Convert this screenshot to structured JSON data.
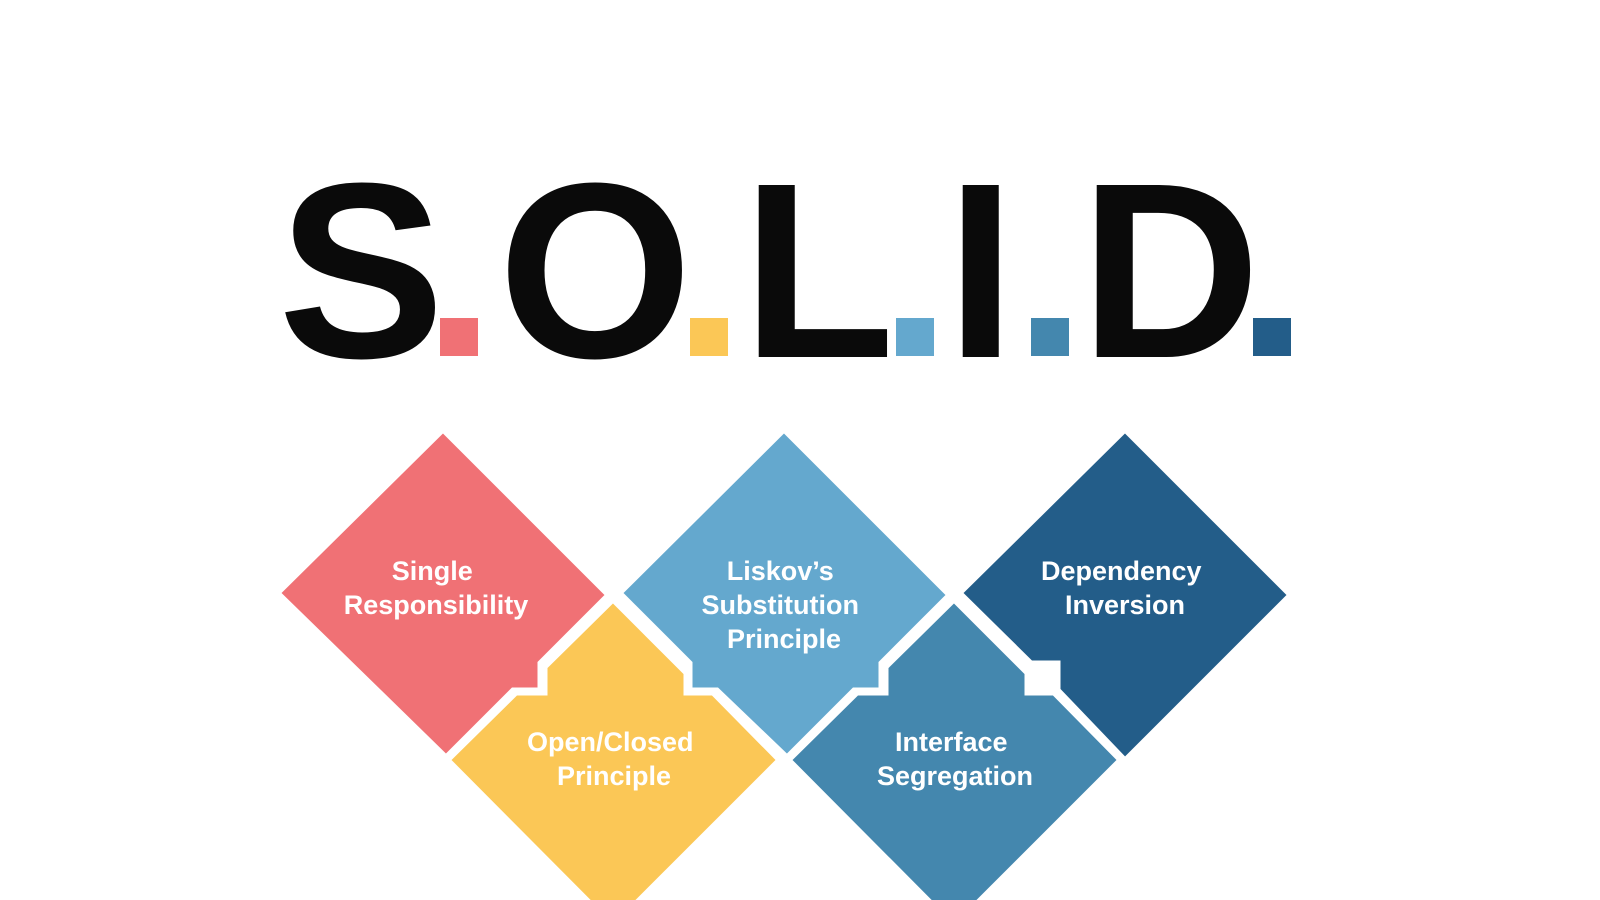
{
  "title": {
    "letters": [
      "S",
      "O",
      "L",
      "I",
      "D"
    ],
    "dot_colors": [
      "#f07175",
      "#fbc756",
      "#64a8ce",
      "#4487ae",
      "#235d89"
    ]
  },
  "principles": [
    {
      "lines": [
        "Single",
        "Responsibility"
      ],
      "color": "#f07175"
    },
    {
      "lines": [
        "Open/Closed",
        "Principle"
      ],
      "color": "#fbc756"
    },
    {
      "lines": [
        "Liskov’s",
        "Substitution",
        "Principle"
      ],
      "color": "#64a8ce"
    },
    {
      "lines": [
        "Interface",
        "Segregation"
      ],
      "color": "#4487ae"
    },
    {
      "lines": [
        "Dependency",
        "Inversion"
      ],
      "color": "#235d89"
    }
  ]
}
